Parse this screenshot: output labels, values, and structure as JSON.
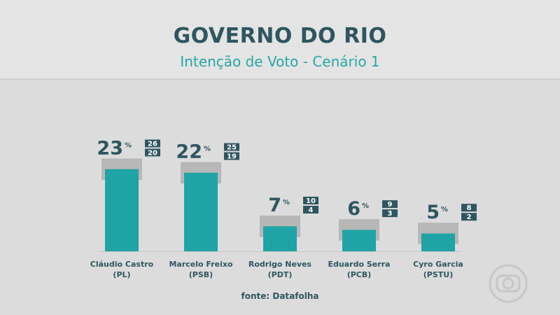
{
  "header": {
    "title": "GOVERNO DO RIO",
    "subtitle": "Intenção de Voto - Cenário 1"
  },
  "source": "fonte: Datafolha",
  "colors": {
    "bar": "#1fa3a5",
    "range": "#b7b7b7",
    "text": "#2f5660",
    "accent": "#27a7a4"
  },
  "watermark_icon": "globo-logo-icon",
  "chart_data": {
    "type": "bar",
    "title": "GOVERNO DO RIO",
    "subtitle": "Intenção de Voto - Cenário 1",
    "unit": "%",
    "categories": [
      {
        "name": "Cláudio Castro",
        "party": "(PL)"
      },
      {
        "name": "Marcelo Freixo",
        "party": "(PSB)"
      },
      {
        "name": "Rodrigo Neves",
        "party": "(PDT)"
      },
      {
        "name": "Eduardo Serra",
        "party": "(PCB)"
      },
      {
        "name": "Cyro Garcia",
        "party": "(PSTU)"
      }
    ],
    "values": [
      23,
      22,
      7,
      6,
      5
    ],
    "range_high": [
      26,
      25,
      10,
      9,
      8
    ],
    "range_low": [
      20,
      19,
      4,
      3,
      2
    ],
    "ylim": [
      0,
      30
    ]
  }
}
